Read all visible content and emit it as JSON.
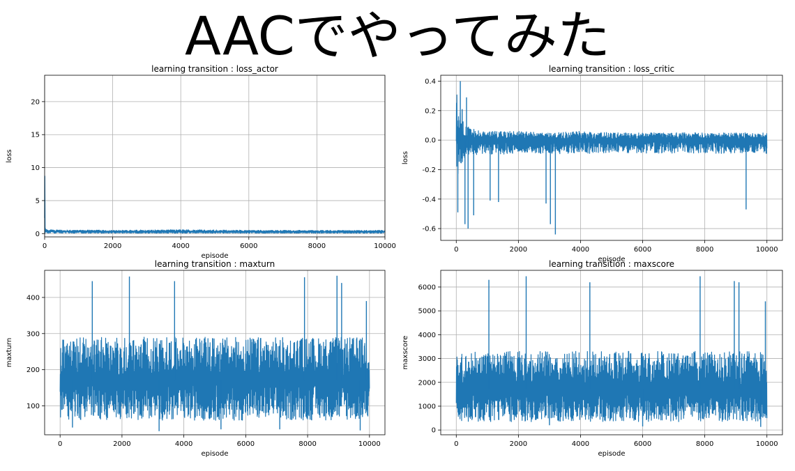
{
  "page": {
    "title": "AACでやってみた"
  },
  "style": {
    "series_color": "#1f77b4",
    "grid_color": "#b0b0b0",
    "axis_color": "#000000"
  },
  "chart_data": [
    {
      "type": "line",
      "title": "learning transition : loss_actor",
      "xlabel": "episode",
      "ylabel": "loss",
      "xlim": [
        0,
        10000
      ],
      "ylim": [
        -0.5,
        24
      ],
      "xticks": [
        0,
        2000,
        4000,
        6000,
        8000,
        10000
      ],
      "yticks": [
        0,
        5,
        10,
        15,
        20
      ],
      "grid": true,
      "legend": "none",
      "series": [
        {
          "color": "#1f77b4",
          "x": [
            0,
            10,
            20,
            40,
            100,
            500,
            2000,
            4000,
            6000,
            8000,
            10000
          ],
          "y": [
            23.7,
            1.2,
            0.6,
            0.45,
            0.35,
            0.3,
            0.28,
            0.3,
            0.27,
            0.28,
            0.28
          ],
          "band": {
            "min": [
              0.05,
              0.05,
              0.05,
              0.05,
              0.05,
              0.05,
              0.05,
              0.05,
              0.05,
              0.05,
              0.05
            ],
            "max": [
              23.7,
              1.2,
              0.8,
              0.7,
              0.6,
              0.55,
              0.5,
              0.6,
              0.5,
              0.5,
              0.5
            ]
          }
        }
      ]
    },
    {
      "type": "line",
      "title": "learning transition : loss_critic",
      "xlabel": "episode",
      "ylabel": "loss",
      "xlim": [
        -500,
        10500
      ],
      "ylim": [
        -0.68,
        0.44
      ],
      "xticks": [
        0,
        2000,
        4000,
        6000,
        8000,
        10000
      ],
      "yticks": [
        -0.6,
        -0.4,
        -0.2,
        0.0,
        0.2,
        0.4
      ],
      "grid": true,
      "legend": "none",
      "series": [
        {
          "color": "#1f77b4",
          "x": [
            0,
            100,
            300,
            600,
            1000,
            2000,
            3000,
            4000,
            5000,
            6000,
            7000,
            8000,
            9000,
            10000
          ],
          "y": [
            0.05,
            0.0,
            0.0,
            0.0,
            0.0,
            0.0,
            0.0,
            0.0,
            0.0,
            0.0,
            0.0,
            0.0,
            0.0,
            0.0
          ],
          "band": {
            "min": [
              -0.35,
              -0.2,
              -0.12,
              -0.1,
              -0.1,
              -0.09,
              -0.1,
              -0.09,
              -0.09,
              -0.09,
              -0.09,
              -0.09,
              -0.09,
              -0.09
            ],
            "max": [
              0.4,
              0.2,
              0.1,
              0.07,
              0.06,
              0.06,
              0.05,
              0.06,
              0.05,
              0.05,
              0.05,
              0.05,
              0.05,
              0.05
            ]
          },
          "spikes": [
            [
              50,
              -0.49
            ],
            [
              130,
              0.4
            ],
            [
              190,
              0.21
            ],
            [
              280,
              -0.57
            ],
            [
              330,
              0.29
            ],
            [
              380,
              -0.6
            ],
            [
              560,
              -0.51
            ],
            [
              1090,
              -0.41
            ],
            [
              1360,
              -0.42
            ],
            [
              2890,
              -0.43
            ],
            [
              3030,
              -0.57
            ],
            [
              3190,
              -0.64
            ],
            [
              9330,
              -0.47
            ]
          ]
        }
      ]
    },
    {
      "type": "line",
      "title": "learning transition : maxturn",
      "xlabel": "episode",
      "ylabel": "maxturn",
      "xlim": [
        -500,
        10500
      ],
      "ylim": [
        20,
        475
      ],
      "xticks": [
        0,
        2000,
        4000,
        6000,
        8000,
        10000
      ],
      "yticks": [
        100,
        200,
        300,
        400
      ],
      "grid": true,
      "legend": "none",
      "series": [
        {
          "color": "#1f77b4",
          "x": [
            0,
            2000,
            4000,
            6000,
            8000,
            10000
          ],
          "y": [
            170,
            170,
            170,
            170,
            170,
            170
          ],
          "band": {
            "min": [
              60,
              60,
              60,
              60,
              60,
              60
            ],
            "max": [
              290,
              290,
              290,
              290,
              290,
              290
            ]
          },
          "spikes": [
            [
              1040,
              445
            ],
            [
              2240,
              458
            ],
            [
              3700,
              445
            ],
            [
              7900,
              456
            ],
            [
              8950,
              460
            ],
            [
              9100,
              440
            ],
            [
              9900,
              390
            ],
            [
              400,
              40
            ],
            [
              3200,
              30
            ],
            [
              5200,
              35
            ],
            [
              7100,
              35
            ],
            [
              9700,
              32
            ]
          ]
        }
      ]
    },
    {
      "type": "line",
      "title": "learning transition : maxscore",
      "xlabel": "episode",
      "ylabel": "maxscore",
      "xlim": [
        -500,
        10500
      ],
      "ylim": [
        -200,
        6700
      ],
      "xticks": [
        0,
        2000,
        4000,
        6000,
        8000,
        10000
      ],
      "yticks": [
        0,
        1000,
        2000,
        3000,
        4000,
        5000,
        6000
      ],
      "grid": true,
      "legend": "none",
      "series": [
        {
          "color": "#1f77b4",
          "x": [
            0,
            2000,
            4000,
            6000,
            8000,
            10000
          ],
          "y": [
            1700,
            1700,
            1700,
            1700,
            1700,
            1700
          ],
          "band": {
            "min": [
              350,
              350,
              350,
              350,
              350,
              350
            ],
            "max": [
              3300,
              3300,
              3300,
              3300,
              3300,
              3300
            ]
          },
          "spikes": [
            [
              1050,
              6300
            ],
            [
              2250,
              6450
            ],
            [
              4300,
              6200
            ],
            [
              7850,
              6450
            ],
            [
              8950,
              6250
            ],
            [
              9100,
              6200
            ],
            [
              9950,
              5400
            ],
            [
              3000,
              200
            ],
            [
              6000,
              150
            ],
            [
              9800,
              130
            ]
          ]
        }
      ]
    }
  ]
}
